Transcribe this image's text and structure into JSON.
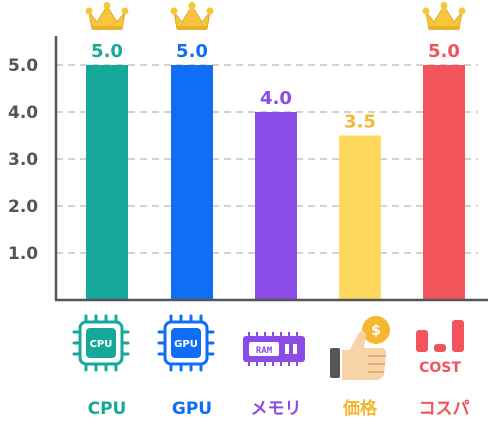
{
  "chart_data": {
    "type": "bar",
    "categories": [
      "CPU",
      "GPU",
      "メモリ",
      "価格",
      "コスパ"
    ],
    "values": [
      5.0,
      5.0,
      4.0,
      3.5,
      5.0
    ],
    "value_labels": [
      "5.0",
      "5.0",
      "4.0",
      "3.5",
      "5.0"
    ],
    "colors": [
      "#17a89c",
      "#0f6ef5",
      "#8b4be6",
      "#ffd95e",
      "#f2545b"
    ],
    "label_colors": [
      "#17a89c",
      "#0f6ef5",
      "#8b4be6",
      "#f5b731",
      "#f2545b"
    ],
    "crowned": [
      true,
      true,
      false,
      false,
      true
    ],
    "yticks": [
      "1.0",
      "2.0",
      "3.0",
      "4.0",
      "5.0"
    ],
    "ylim": [
      0,
      5
    ],
    "grid": true,
    "icons": [
      "cpu-chip-icon",
      "gpu-chip-icon",
      "ram-module-icon",
      "thumbs-up-coin-icon",
      "cost-bars-icon"
    ],
    "icon_texts": {
      "cpu": "CPU",
      "gpu": "GPU",
      "ram": "RAM",
      "coin": "$",
      "cost": "COST"
    }
  }
}
